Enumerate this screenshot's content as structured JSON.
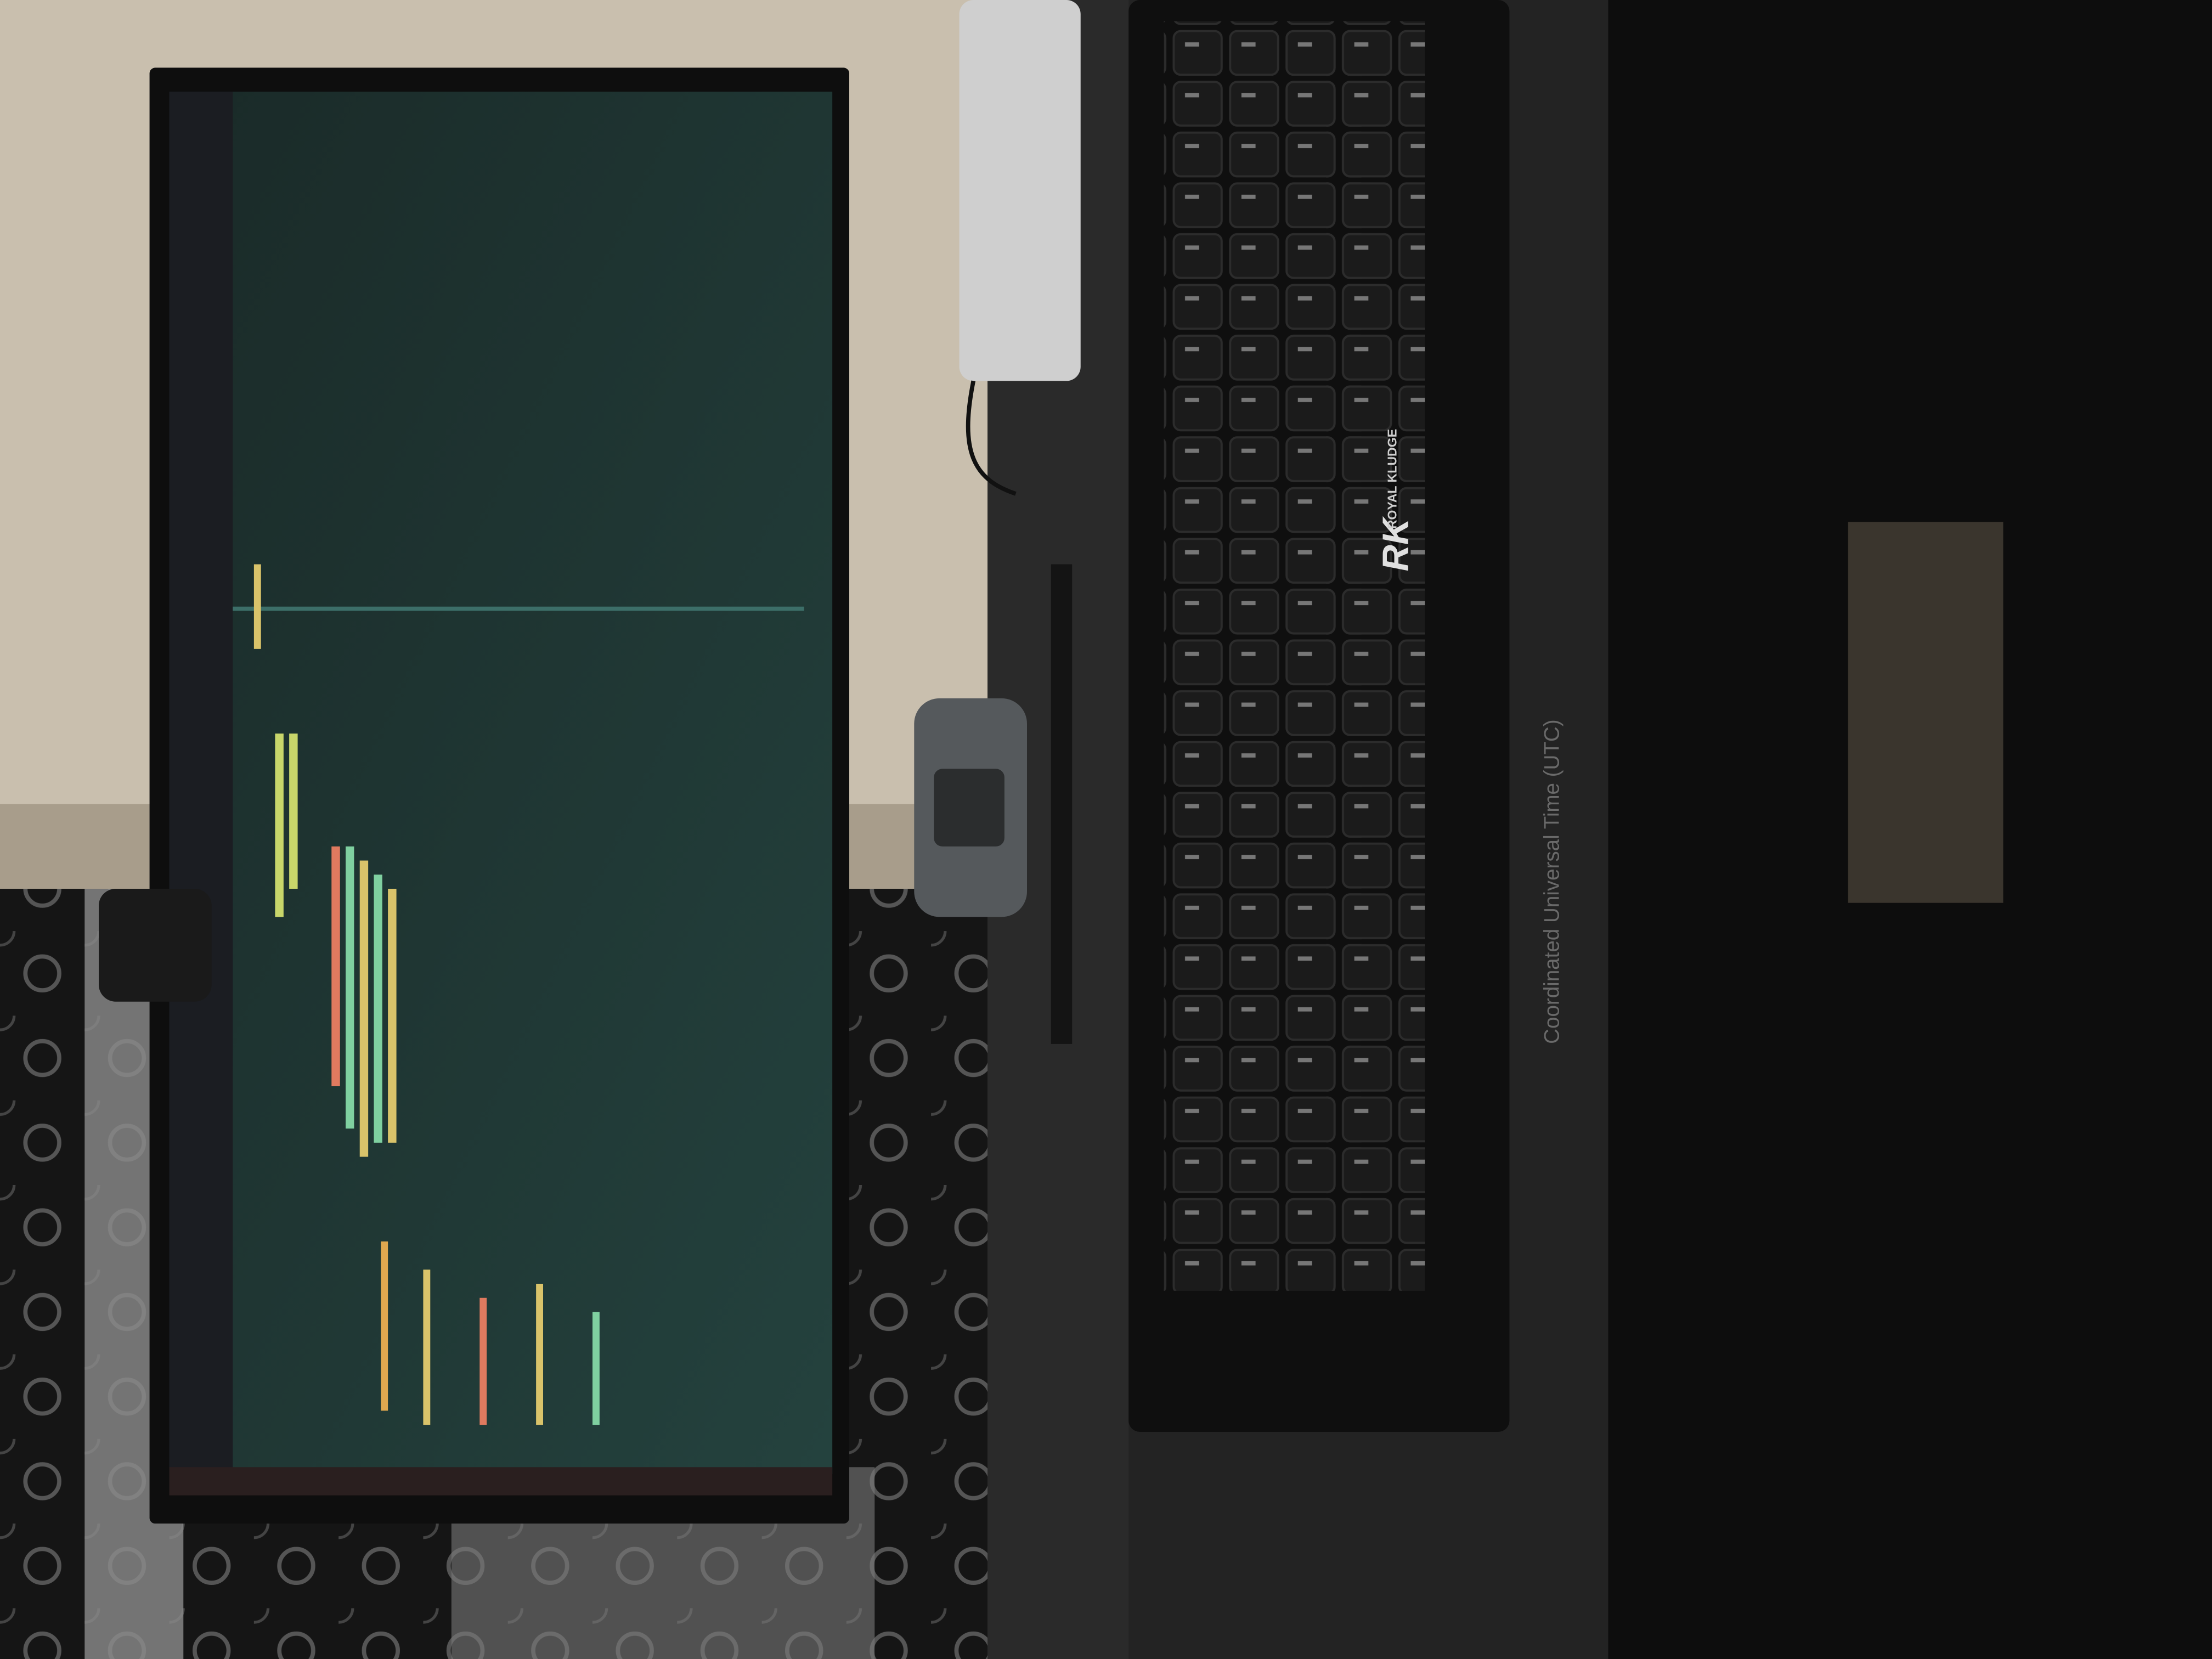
{
  "keyboard": {
    "logo": "RK",
    "brand": "ROYAL KLUDGE"
  },
  "desk_mat": {
    "text": "Coordinated Universal Time (UTC)"
  }
}
